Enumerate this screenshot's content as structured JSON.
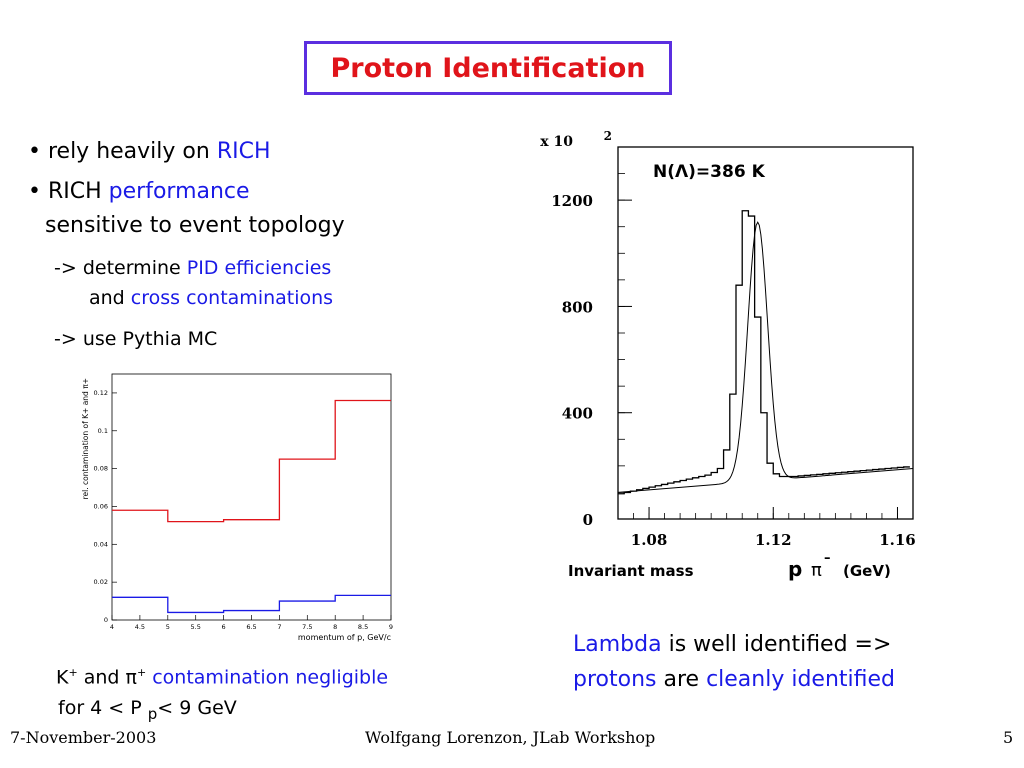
{
  "title": "Proton Identification",
  "bullets": {
    "b1_prefix": "• rely heavily on ",
    "b1_highlight": "RICH",
    "b2_prefix": "• RICH ",
    "b2_highlight": "performance",
    "b2_line2": "sensitive to event topology",
    "s1_prefix": "-> determine ",
    "s1_highlight": "PID efficiencies",
    "s1_line2_prefix": "and ",
    "s1_line2_highlight": "cross contaminations",
    "s2": "-> use Pythia MC"
  },
  "left_caption": {
    "k": "K",
    "k_sup": "+",
    "and": " and ",
    "pi": "π",
    "pi_sup": "+",
    "highlight": " contamination negligible",
    "line2_prefix": "for  4 < P ",
    "line2_sub": "p",
    "line2_suffix": "< 9 GeV"
  },
  "right_caption": {
    "l1_highlight": "Lambda",
    "l1_rest": " is well identified =>",
    "l2_highlight1": "protons",
    "l2_mid": " are ",
    "l2_highlight2": "cleanly identified"
  },
  "footer": {
    "date": "7-November-2003",
    "center": "Wolfgang Lorenzon, JLab Workshop",
    "page": "5"
  },
  "colors": {
    "title_red": "#e0141a",
    "highlight_blue": "#1a1ae6",
    "border_purple": "#5b2fe0",
    "hist_red": "#e0141a",
    "hist_blue": "#1a1ae6"
  },
  "chart_data": [
    {
      "type": "histogram",
      "xlabel": "momentum of p, GeV/c",
      "ylabel": "rel. contamination of K+ and π+",
      "xlim": [
        4,
        9
      ],
      "ylim": [
        0,
        0.13
      ],
      "x_ticks": [
        "4",
        "4.5",
        "5",
        "5.5",
        "6",
        "6.5",
        "7",
        "7.5",
        "8",
        "8.5",
        "9"
      ],
      "y_ticks": [
        "0",
        "0.02",
        "0.04",
        "0.06",
        "0.08",
        "0.1",
        "0.12"
      ],
      "bin_edges": [
        4,
        5,
        6,
        7,
        8,
        9
      ],
      "series": [
        {
          "color": "#e0141a",
          "values": [
            0.058,
            0.052,
            0.053,
            0.085,
            0.116
          ]
        },
        {
          "color": "#1a1ae6",
          "values": [
            0.012,
            0.004,
            0.005,
            0.01,
            0.013
          ]
        }
      ],
      "grid": false
    },
    {
      "type": "histogram",
      "xlabel": "Invariant mass",
      "xlabel_particle": "p",
      "xlabel_pi": "π",
      "xlabel_pi_sup": "–",
      "xlabel_unit": "(GeV)",
      "multiplier": "x 10",
      "multiplier_exp": "2",
      "annotation": "N(Λ)=386 K",
      "xlim": [
        1.07,
        1.165
      ],
      "ylim": [
        0,
        1400
      ],
      "x_ticks": [
        "1.08",
        "1.12",
        "1.16"
      ],
      "y_ticks": [
        "0",
        "400",
        "800",
        "1200"
      ],
      "bin_width": 0.002,
      "values": [
        95,
        100,
        105,
        110,
        115,
        120,
        125,
        130,
        135,
        140,
        145,
        150,
        155,
        160,
        165,
        175,
        190,
        260,
        470,
        880,
        1160,
        1140,
        760,
        400,
        210,
        170,
        160,
        160,
        160,
        162,
        164,
        166,
        168,
        170,
        172,
        174,
        176,
        178,
        180,
        182,
        184,
        186,
        188,
        190,
        192,
        194,
        196
      ],
      "fit_peak": 1117,
      "fit_x0": 1.115,
      "fit_sigma": 0.0032,
      "grid": false
    }
  ]
}
